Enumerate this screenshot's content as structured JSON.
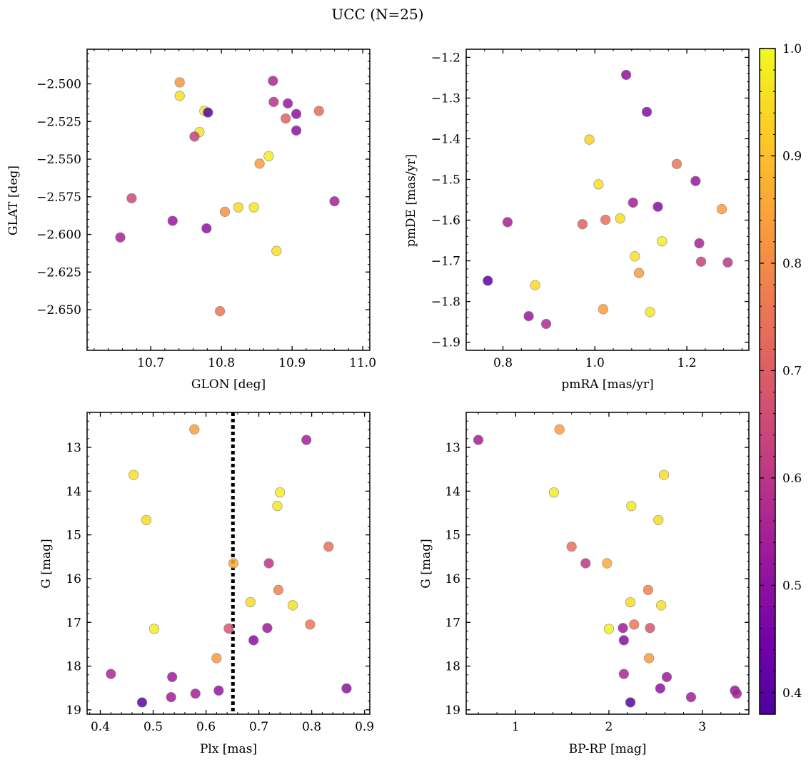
{
  "figure": {
    "title": "UCC (N=25)"
  },
  "colorbar": {
    "cmap": "plasma",
    "range": [
      0.38,
      1.0
    ],
    "ticks": [
      0.4,
      0.5,
      0.6,
      0.7,
      0.8,
      0.9,
      1.0
    ],
    "tick_labels": [
      "0.4",
      "0.5",
      "0.6",
      "0.7",
      "0.8",
      "0.9",
      "1.0"
    ]
  },
  "chart_data": [
    {
      "type": "scatter",
      "xlabel": "GLON [deg]",
      "ylabel": "GLAT [deg]",
      "xlim": [
        10.61,
        11.01
      ],
      "ylim": [
        -2.677,
        -2.477
      ],
      "y_inverted": false,
      "xticks": [
        10.7,
        10.8,
        10.9,
        11.0
      ],
      "xtick_labels": [
        "10.7",
        "10.8",
        "10.9",
        "11.0"
      ],
      "yticks": [
        -2.5,
        -2.525,
        -2.55,
        -2.575,
        -2.6,
        -2.625,
        -2.65
      ],
      "ytick_labels": [
        "−2.500",
        "−2.525",
        "−2.550",
        "−2.575",
        "−2.600",
        "−2.625",
        "−2.650"
      ],
      "points": [
        {
          "x": 10.741,
          "y": -2.499,
          "c": 0.82
        },
        {
          "x": 10.741,
          "y": -2.508,
          "c": 0.96
        },
        {
          "x": 10.776,
          "y": -2.518,
          "c": 0.97
        },
        {
          "x": 10.781,
          "y": -2.519,
          "c": 0.4
        },
        {
          "x": 10.769,
          "y": -2.532,
          "c": 0.97
        },
        {
          "x": 10.762,
          "y": -2.535,
          "c": 0.63
        },
        {
          "x": 10.873,
          "y": -2.498,
          "c": 0.56
        },
        {
          "x": 10.874,
          "y": -2.512,
          "c": 0.59
        },
        {
          "x": 10.894,
          "y": -2.513,
          "c": 0.52
        },
        {
          "x": 10.906,
          "y": -2.52,
          "c": 0.5
        },
        {
          "x": 10.938,
          "y": -2.518,
          "c": 0.73
        },
        {
          "x": 10.891,
          "y": -2.523,
          "c": 0.71
        },
        {
          "x": 10.906,
          "y": -2.531,
          "c": 0.5
        },
        {
          "x": 10.867,
          "y": -2.548,
          "c": 0.98
        },
        {
          "x": 10.854,
          "y": -2.553,
          "c": 0.83
        },
        {
          "x": 10.673,
          "y": -2.576,
          "c": 0.65
        },
        {
          "x": 10.824,
          "y": -2.582,
          "c": 0.95
        },
        {
          "x": 10.846,
          "y": -2.582,
          "c": 0.97
        },
        {
          "x": 10.805,
          "y": -2.585,
          "c": 0.81
        },
        {
          "x": 10.96,
          "y": -2.578,
          "c": 0.54
        },
        {
          "x": 10.731,
          "y": -2.591,
          "c": 0.52
        },
        {
          "x": 10.779,
          "y": -2.596,
          "c": 0.5
        },
        {
          "x": 10.657,
          "y": -2.602,
          "c": 0.55
        },
        {
          "x": 10.878,
          "y": -2.611,
          "c": 0.96
        },
        {
          "x": 10.798,
          "y": -2.651,
          "c": 0.75
        }
      ]
    },
    {
      "type": "scatter",
      "xlabel": "pmRA [mas/yr]",
      "ylabel": "pmDE [mas/yr]",
      "xlim": [
        0.72,
        1.335
      ],
      "ylim": [
        -1.92,
        -1.18
      ],
      "y_inverted": false,
      "xticks": [
        0.8,
        1.0,
        1.2
      ],
      "xtick_labels": [
        "0.8",
        "1.0",
        "1.2"
      ],
      "yticks": [
        -1.2,
        -1.3,
        -1.4,
        -1.5,
        -1.6,
        -1.7,
        -1.8,
        -1.9
      ],
      "ytick_labels": [
        "−1.2",
        "−1.3",
        "−1.4",
        "−1.5",
        "−1.6",
        "−1.7",
        "−1.8",
        "−1.9"
      ],
      "points": [
        {
          "x": 1.068,
          "y": -1.243,
          "c": 0.5
        },
        {
          "x": 1.113,
          "y": -1.334,
          "c": 0.48
        },
        {
          "x": 0.988,
          "y": -1.402,
          "c": 0.93
        },
        {
          "x": 1.178,
          "y": -1.462,
          "c": 0.75
        },
        {
          "x": 1.219,
          "y": -1.504,
          "c": 0.52
        },
        {
          "x": 1.008,
          "y": -1.512,
          "c": 0.96
        },
        {
          "x": 1.083,
          "y": -1.557,
          "c": 0.54
        },
        {
          "x": 1.137,
          "y": -1.567,
          "c": 0.49
        },
        {
          "x": 1.276,
          "y": -1.573,
          "c": 0.84
        },
        {
          "x": 1.055,
          "y": -1.596,
          "c": 0.95
        },
        {
          "x": 1.023,
          "y": -1.599,
          "c": 0.74
        },
        {
          "x": 0.81,
          "y": -1.605,
          "c": 0.54
        },
        {
          "x": 0.973,
          "y": -1.61,
          "c": 0.71
        },
        {
          "x": 1.146,
          "y": -1.652,
          "c": 0.98
        },
        {
          "x": 1.227,
          "y": -1.657,
          "c": 0.55
        },
        {
          "x": 1.087,
          "y": -1.689,
          "c": 0.96
        },
        {
          "x": 1.231,
          "y": -1.702,
          "c": 0.63
        },
        {
          "x": 1.289,
          "y": -1.704,
          "c": 0.6
        },
        {
          "x": 1.096,
          "y": -1.73,
          "c": 0.83
        },
        {
          "x": 0.767,
          "y": -1.749,
          "c": 0.4
        },
        {
          "x": 0.87,
          "y": -1.76,
          "c": 0.95
        },
        {
          "x": 1.018,
          "y": -1.819,
          "c": 0.84
        },
        {
          "x": 1.12,
          "y": -1.826,
          "c": 0.97
        },
        {
          "x": 0.856,
          "y": -1.836,
          "c": 0.52
        },
        {
          "x": 0.894,
          "y": -1.855,
          "c": 0.57
        }
      ]
    },
    {
      "type": "scatter",
      "xlabel": "Plx [mas]",
      "ylabel": "G [mag]",
      "xlim": [
        0.375,
        0.91
      ],
      "ylim": [
        12.2,
        19.1
      ],
      "y_inverted": true,
      "xticks": [
        0.4,
        0.5,
        0.6,
        0.7,
        0.8,
        0.9
      ],
      "xtick_labels": [
        "0.4",
        "0.5",
        "0.6",
        "0.7",
        "0.8",
        "0.9"
      ],
      "yticks": [
        13,
        14,
        15,
        16,
        17,
        18,
        19
      ],
      "ytick_labels": [
        "13",
        "14",
        "15",
        "16",
        "17",
        "18",
        "19"
      ],
      "vline": 0.651,
      "points": [
        {
          "x": 0.578,
          "y": 12.59,
          "c": 0.84
        },
        {
          "x": 0.79,
          "y": 12.83,
          "c": 0.54
        },
        {
          "x": 0.463,
          "y": 13.63,
          "c": 0.96
        },
        {
          "x": 0.74,
          "y": 14.03,
          "c": 0.98
        },
        {
          "x": 0.735,
          "y": 14.34,
          "c": 0.97
        },
        {
          "x": 0.487,
          "y": 14.66,
          "c": 0.95
        },
        {
          "x": 0.832,
          "y": 15.27,
          "c": 0.74
        },
        {
          "x": 0.652,
          "y": 15.65,
          "c": 0.86
        },
        {
          "x": 0.719,
          "y": 15.65,
          "c": 0.6
        },
        {
          "x": 0.737,
          "y": 16.26,
          "c": 0.78
        },
        {
          "x": 0.684,
          "y": 16.54,
          "c": 0.95
        },
        {
          "x": 0.764,
          "y": 16.61,
          "c": 0.96
        },
        {
          "x": 0.797,
          "y": 17.05,
          "c": 0.76
        },
        {
          "x": 0.502,
          "y": 17.15,
          "c": 0.98
        },
        {
          "x": 0.643,
          "y": 17.14,
          "c": 0.68
        },
        {
          "x": 0.716,
          "y": 17.13,
          "c": 0.53
        },
        {
          "x": 0.69,
          "y": 17.41,
          "c": 0.49
        },
        {
          "x": 0.62,
          "y": 17.82,
          "c": 0.83
        },
        {
          "x": 0.42,
          "y": 18.18,
          "c": 0.56
        },
        {
          "x": 0.536,
          "y": 18.25,
          "c": 0.53
        },
        {
          "x": 0.866,
          "y": 18.51,
          "c": 0.5
        },
        {
          "x": 0.624,
          "y": 18.56,
          "c": 0.51
        },
        {
          "x": 0.58,
          "y": 18.63,
          "c": 0.55
        },
        {
          "x": 0.534,
          "y": 18.71,
          "c": 0.54
        },
        {
          "x": 0.479,
          "y": 18.83,
          "c": 0.4
        }
      ]
    },
    {
      "type": "scatter",
      "xlabel": "BP-RP [mag]",
      "ylabel": "G [mag]",
      "xlim": [
        0.47,
        3.5
      ],
      "ylim": [
        12.2,
        19.1
      ],
      "y_inverted": true,
      "xticks": [
        1,
        2,
        3
      ],
      "xtick_labels": [
        "1",
        "2",
        "3"
      ],
      "yticks": [
        13,
        14,
        15,
        16,
        17,
        18,
        19
      ],
      "ytick_labels": [
        "13",
        "14",
        "15",
        "16",
        "17",
        "18",
        "19"
      ],
      "points": [
        {
          "x": 0.6,
          "y": 12.83,
          "c": 0.54
        },
        {
          "x": 1.47,
          "y": 12.59,
          "c": 0.84
        },
        {
          "x": 2.59,
          "y": 13.63,
          "c": 0.96
        },
        {
          "x": 1.41,
          "y": 14.03,
          "c": 0.98
        },
        {
          "x": 2.24,
          "y": 14.34,
          "c": 0.97
        },
        {
          "x": 2.53,
          "y": 14.66,
          "c": 0.95
        },
        {
          "x": 1.6,
          "y": 15.27,
          "c": 0.74
        },
        {
          "x": 1.75,
          "y": 15.65,
          "c": 0.6
        },
        {
          "x": 1.98,
          "y": 15.65,
          "c": 0.86
        },
        {
          "x": 2.42,
          "y": 16.26,
          "c": 0.78
        },
        {
          "x": 2.23,
          "y": 16.54,
          "c": 0.95
        },
        {
          "x": 2.56,
          "y": 16.61,
          "c": 0.96
        },
        {
          "x": 2.27,
          "y": 17.05,
          "c": 0.76
        },
        {
          "x": 2.44,
          "y": 17.13,
          "c": 0.68
        },
        {
          "x": 2.15,
          "y": 17.13,
          "c": 0.53
        },
        {
          "x": 2.0,
          "y": 17.15,
          "c": 0.98
        },
        {
          "x": 2.16,
          "y": 17.41,
          "c": 0.49
        },
        {
          "x": 2.43,
          "y": 17.82,
          "c": 0.83
        },
        {
          "x": 2.16,
          "y": 18.18,
          "c": 0.56
        },
        {
          "x": 2.62,
          "y": 18.25,
          "c": 0.53
        },
        {
          "x": 2.55,
          "y": 18.51,
          "c": 0.5
        },
        {
          "x": 3.35,
          "y": 18.56,
          "c": 0.51
        },
        {
          "x": 3.37,
          "y": 18.63,
          "c": 0.55
        },
        {
          "x": 2.88,
          "y": 18.71,
          "c": 0.54
        },
        {
          "x": 2.23,
          "y": 18.83,
          "c": 0.4
        }
      ]
    }
  ]
}
